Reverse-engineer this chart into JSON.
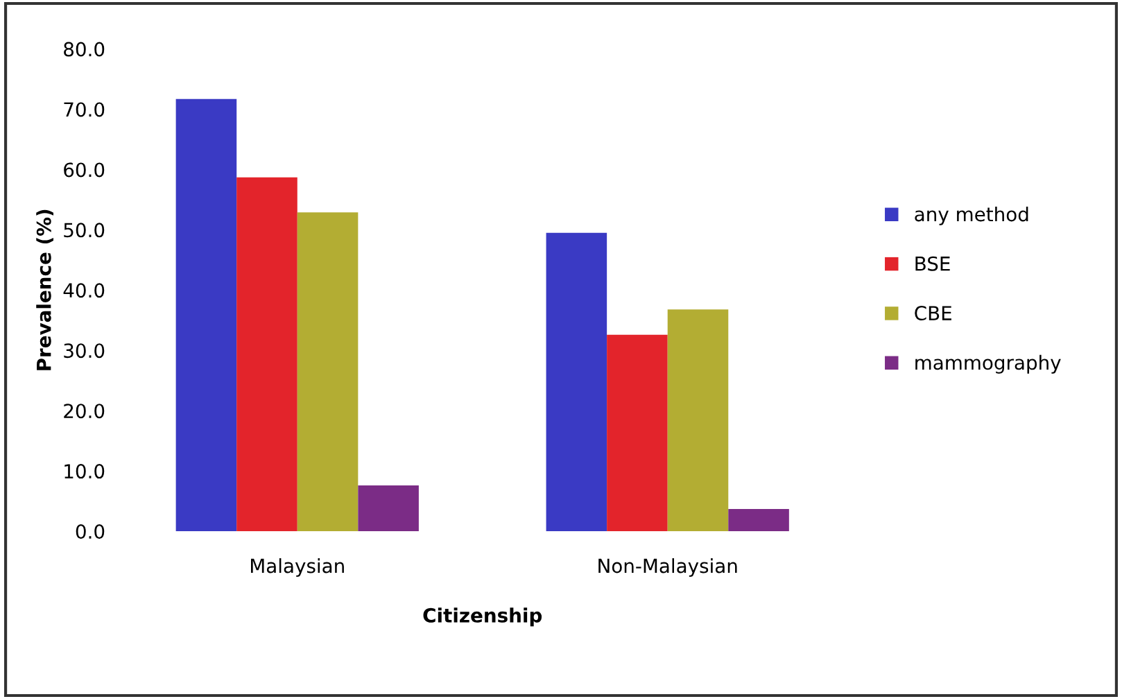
{
  "chart_data": {
    "type": "bar",
    "xlabel": "Citizenship",
    "ylabel": "Prevalence (%)",
    "categories": [
      "Malaysian",
      "Non-Malaysian"
    ],
    "series": [
      {
        "name": "any method",
        "color": "#3a3ac4",
        "values": [
          71.7,
          49.5
        ]
      },
      {
        "name": "BSE",
        "color": "#e3242b",
        "values": [
          58.7,
          32.6
        ]
      },
      {
        "name": "CBE",
        "color": "#b3ad33",
        "values": [
          52.9,
          36.8
        ]
      },
      {
        "name": "mammography",
        "color": "#7b2c86",
        "values": [
          7.6,
          3.7
        ]
      }
    ],
    "ylim": [
      0,
      80
    ],
    "yticks": [
      {
        "value": 0,
        "label": "0.0"
      },
      {
        "value": 10,
        "label": "10.0"
      },
      {
        "value": 20,
        "label": "20.0"
      },
      {
        "value": 30,
        "label": "30.0"
      },
      {
        "value": 40,
        "label": "40.0"
      },
      {
        "value": 50,
        "label": "50.0"
      },
      {
        "value": 60,
        "label": "60.0"
      },
      {
        "value": 70,
        "label": "70.0"
      },
      {
        "value": 80,
        "label": "80.0"
      }
    ],
    "grid": false,
    "legend": "right"
  }
}
